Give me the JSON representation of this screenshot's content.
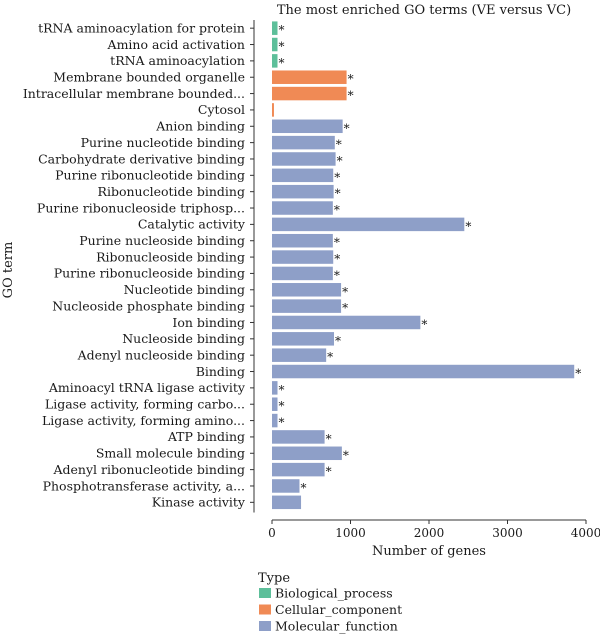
{
  "chart_data": {
    "type": "bar",
    "orientation": "horizontal",
    "title": "The most enriched GO terms (VE versus VC)",
    "xlabel": "Number of genes",
    "ylabel": "GO term",
    "xlim": [
      0,
      4000
    ],
    "xticks": [
      "0",
      "1000",
      "2000",
      "3000",
      "4000"
    ],
    "significance_marker": "*",
    "categories": [
      {
        "label": "tRNA aminoacylation for protein",
        "value": 70,
        "type": "Biological_process",
        "significant": true
      },
      {
        "label": "Amino acid activation",
        "value": 70,
        "type": "Biological_process",
        "significant": true
      },
      {
        "label": "tRNA aminoacylation",
        "value": 70,
        "type": "Biological_process",
        "significant": true
      },
      {
        "label": "Membrane bounded organelle",
        "value": 950,
        "type": "Cellular_component",
        "significant": true
      },
      {
        "label": "Intracellular membrane bounded...",
        "value": 950,
        "type": "Cellular_component",
        "significant": true
      },
      {
        "label": "Cytosol",
        "value": 25,
        "type": "Cellular_component",
        "significant": false
      },
      {
        "label": "Anion binding",
        "value": 900,
        "type": "Molecular_function",
        "significant": true
      },
      {
        "label": "Purine nucleotide binding",
        "value": 800,
        "type": "Molecular_function",
        "significant": true
      },
      {
        "label": "Carbohydrate derivative binding",
        "value": 810,
        "type": "Molecular_function",
        "significant": true
      },
      {
        "label": "Purine ribonucleotide binding",
        "value": 780,
        "type": "Molecular_function",
        "significant": true
      },
      {
        "label": "Ribonucleotide binding",
        "value": 785,
        "type": "Molecular_function",
        "significant": true
      },
      {
        "label": "Purine ribonucleoside triphosp...",
        "value": 775,
        "type": "Molecular_function",
        "significant": true
      },
      {
        "label": "Catalytic activity",
        "value": 2450,
        "type": "Molecular_function",
        "significant": true
      },
      {
        "label": "Purine nucleoside binding",
        "value": 775,
        "type": "Molecular_function",
        "significant": true
      },
      {
        "label": "Ribonucleoside binding",
        "value": 780,
        "type": "Molecular_function",
        "significant": true
      },
      {
        "label": "Purine ribonucleoside binding",
        "value": 775,
        "type": "Molecular_function",
        "significant": true
      },
      {
        "label": "Nucleotide binding",
        "value": 880,
        "type": "Molecular_function",
        "significant": true
      },
      {
        "label": "Nucleoside phosphate binding",
        "value": 880,
        "type": "Molecular_function",
        "significant": true
      },
      {
        "label": "Ion binding",
        "value": 1890,
        "type": "Molecular_function",
        "significant": true
      },
      {
        "label": "Nucleoside binding",
        "value": 790,
        "type": "Molecular_function",
        "significant": true
      },
      {
        "label": "Adenyl nucleoside binding",
        "value": 690,
        "type": "Molecular_function",
        "significant": true
      },
      {
        "label": "Binding",
        "value": 3850,
        "type": "Molecular_function",
        "significant": true
      },
      {
        "label": "Aminoacyl tRNA ligase activity",
        "value": 70,
        "type": "Molecular_function",
        "significant": true
      },
      {
        "label": "Ligase activity, forming carbo...",
        "value": 70,
        "type": "Molecular_function",
        "significant": true
      },
      {
        "label": "Ligase activity, forming amino...",
        "value": 70,
        "type": "Molecular_function",
        "significant": true
      },
      {
        "label": "ATP binding",
        "value": 670,
        "type": "Molecular_function",
        "significant": true
      },
      {
        "label": "Small molecule binding",
        "value": 890,
        "type": "Molecular_function",
        "significant": true
      },
      {
        "label": "Adenyl ribonucleotide binding",
        "value": 670,
        "type": "Molecular_function",
        "significant": true
      },
      {
        "label": "Phosphotransferase activity, a...",
        "value": 350,
        "type": "Molecular_function",
        "significant": true
      },
      {
        "label": "Kinase activity",
        "value": 370,
        "type": "Molecular_function",
        "significant": false
      }
    ],
    "legend": {
      "title": "Type",
      "position": "bottom-left",
      "entries": [
        {
          "name": "Biological_process",
          "color": "#5dbf9a"
        },
        {
          "name": "Cellular_component",
          "color": "#f08a55"
        },
        {
          "name": "Molecular_function",
          "color": "#8e9fc8"
        }
      ]
    }
  }
}
